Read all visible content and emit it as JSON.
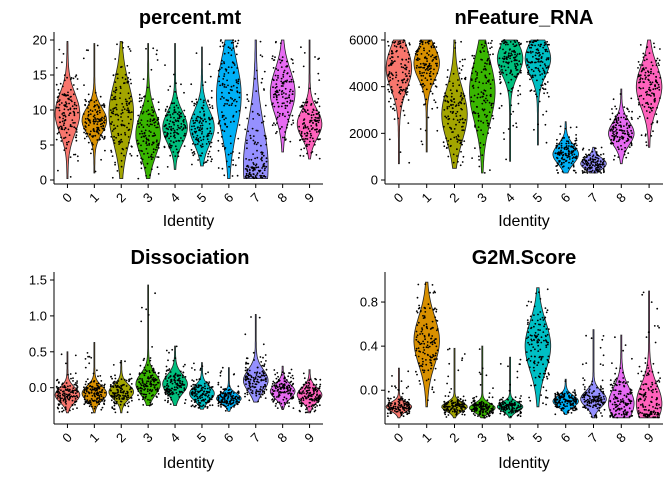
{
  "colors": [
    "#F8766D",
    "#D89000",
    "#A3A500",
    "#39B600",
    "#00BF7D",
    "#00BFC4",
    "#00B0F6",
    "#9590FF",
    "#E76BF3",
    "#FF62BC"
  ],
  "chart_data": [
    {
      "type": "violin",
      "title": "percent.mt",
      "xlabel": "Identity",
      "ylabel": "",
      "categories": [
        "0",
        "1",
        "2",
        "3",
        "4",
        "5",
        "6",
        "7",
        "8",
        "9"
      ],
      "ylim": [
        0,
        20
      ],
      "yticks": [
        0,
        5,
        10,
        15,
        20
      ],
      "ytick_labels": [
        "0",
        "5",
        "10",
        "15",
        "20"
      ],
      "series": [
        {
          "min": 0.2,
          "max": 19.8,
          "median": 9.5,
          "mode": 9.5,
          "spread": 2.8
        },
        {
          "min": 1.0,
          "max": 19.5,
          "median": 8.5,
          "mode": 8.5,
          "spread": 1.8
        },
        {
          "min": 0.2,
          "max": 19.8,
          "median": 10.0,
          "mode": 9.5,
          "spread": 4.2
        },
        {
          "min": 0.2,
          "max": 19.5,
          "median": 7.0,
          "mode": 6.5,
          "spread": 3.0
        },
        {
          "min": 1.5,
          "max": 19.5,
          "median": 7.5,
          "mode": 7.5,
          "spread": 2.2
        },
        {
          "min": 2.0,
          "max": 19.0,
          "median": 8.0,
          "mode": 7.5,
          "spread": 2.4
        },
        {
          "min": 0.2,
          "max": 20.0,
          "median": 11.0,
          "mode": 12.0,
          "spread": 5.0
        },
        {
          "min": 0.2,
          "max": 20.0,
          "median": 5.0,
          "mode": 2.0,
          "spread": 6.0
        },
        {
          "min": 4.0,
          "max": 20.0,
          "median": 12.5,
          "mode": 12.5,
          "spread": 3.2
        },
        {
          "min": 3.0,
          "max": 20.0,
          "median": 8.0,
          "mode": 8.0,
          "spread": 2.0
        }
      ]
    },
    {
      "type": "violin",
      "title": "nFeature_RNA",
      "xlabel": "Identity",
      "ylabel": "",
      "categories": [
        "0",
        "1",
        "2",
        "3",
        "4",
        "5",
        "6",
        "7",
        "8",
        "9"
      ],
      "ylim": [
        0,
        6000
      ],
      "yticks": [
        0,
        2000,
        4000,
        6000
      ],
      "ytick_labels": [
        "0",
        "2000",
        "4000",
        "6000"
      ],
      "series": [
        {
          "min": 700,
          "max": 6000,
          "median": 4600,
          "mode": 4800,
          "spread": 900
        },
        {
          "min": 1200,
          "max": 6000,
          "median": 4900,
          "mode": 5000,
          "spread": 700
        },
        {
          "min": 500,
          "max": 6000,
          "median": 3000,
          "mode": 2800,
          "spread": 1100
        },
        {
          "min": 300,
          "max": 6000,
          "median": 3500,
          "mode": 3800,
          "spread": 1300
        },
        {
          "min": 800,
          "max": 6000,
          "median": 5000,
          "mode": 5200,
          "spread": 700
        },
        {
          "min": 1500,
          "max": 6000,
          "median": 5000,
          "mode": 5200,
          "spread": 700
        },
        {
          "min": 300,
          "max": 2500,
          "median": 1200,
          "mode": 1100,
          "spread": 400
        },
        {
          "min": 300,
          "max": 1400,
          "median": 700,
          "mode": 700,
          "spread": 250
        },
        {
          "min": 700,
          "max": 3900,
          "median": 2000,
          "mode": 2000,
          "spread": 500
        },
        {
          "min": 1400,
          "max": 6000,
          "median": 4000,
          "mode": 4000,
          "spread": 900
        }
      ]
    },
    {
      "type": "violin",
      "title": "Dissociation",
      "xlabel": "Identity",
      "ylabel": "",
      "categories": [
        "0",
        "1",
        "2",
        "3",
        "4",
        "5",
        "6",
        "7",
        "8",
        "9"
      ],
      "ylim": [
        -0.45,
        1.5
      ],
      "yticks": [
        0.0,
        0.5,
        1.0,
        1.5
      ],
      "ytick_labels": [
        "0.0",
        "0.5",
        "1.0",
        "1.5"
      ],
      "series": [
        {
          "min": -0.35,
          "max": 0.5,
          "median": -0.08,
          "mode": -0.1,
          "spread": 0.1
        },
        {
          "min": -0.35,
          "max": 0.63,
          "median": -0.06,
          "mode": -0.08,
          "spread": 0.1
        },
        {
          "min": -0.35,
          "max": 0.38,
          "median": -0.05,
          "mode": -0.06,
          "spread": 0.1
        },
        {
          "min": -0.25,
          "max": 1.43,
          "median": 0.08,
          "mode": 0.05,
          "spread": 0.14
        },
        {
          "min": -0.25,
          "max": 0.58,
          "median": 0.08,
          "mode": 0.05,
          "spread": 0.13
        },
        {
          "min": -0.3,
          "max": 0.35,
          "median": -0.05,
          "mode": -0.08,
          "spread": 0.1
        },
        {
          "min": -0.33,
          "max": 0.28,
          "median": -0.15,
          "mode": -0.15,
          "spread": 0.07
        },
        {
          "min": -0.2,
          "max": 1.02,
          "median": 0.15,
          "mode": 0.1,
          "spread": 0.15
        },
        {
          "min": -0.3,
          "max": 0.3,
          "median": -0.04,
          "mode": -0.05,
          "spread": 0.1
        },
        {
          "min": -0.35,
          "max": 0.25,
          "median": -0.08,
          "mode": -0.1,
          "spread": 0.1
        }
      ]
    },
    {
      "type": "violin",
      "title": "G2M.Score",
      "xlabel": "Identity",
      "ylabel": "",
      "categories": [
        "0",
        "1",
        "2",
        "3",
        "4",
        "5",
        "6",
        "7",
        "8",
        "9"
      ],
      "ylim": [
        -0.27,
        1.0
      ],
      "yticks": [
        0.0,
        0.4,
        0.8
      ],
      "ytick_labels": [
        "0.0",
        "0.4",
        "0.8"
      ],
      "series": [
        {
          "min": -0.25,
          "max": 0.2,
          "median": -0.15,
          "mode": -0.15,
          "spread": 0.04
        },
        {
          "min": -0.15,
          "max": 0.98,
          "median": 0.45,
          "mode": 0.45,
          "spread": 0.22
        },
        {
          "min": -0.25,
          "max": 0.38,
          "median": -0.14,
          "mode": -0.15,
          "spread": 0.04
        },
        {
          "min": -0.25,
          "max": 0.4,
          "median": -0.15,
          "mode": -0.16,
          "spread": 0.04
        },
        {
          "min": -0.25,
          "max": 0.3,
          "median": -0.14,
          "mode": -0.15,
          "spread": 0.04
        },
        {
          "min": -0.15,
          "max": 0.93,
          "median": 0.4,
          "mode": 0.4,
          "spread": 0.22
        },
        {
          "min": -0.22,
          "max": 0.1,
          "median": -0.1,
          "mode": -0.1,
          "spread": 0.05
        },
        {
          "min": -0.25,
          "max": 0.55,
          "median": -0.05,
          "mode": -0.08,
          "spread": 0.07
        },
        {
          "min": -0.25,
          "max": 0.5,
          "median": -0.05,
          "mode": -0.12,
          "spread": 0.14
        },
        {
          "min": -0.25,
          "max": 0.9,
          "median": 0.0,
          "mode": -0.12,
          "spread": 0.17
        }
      ]
    }
  ]
}
